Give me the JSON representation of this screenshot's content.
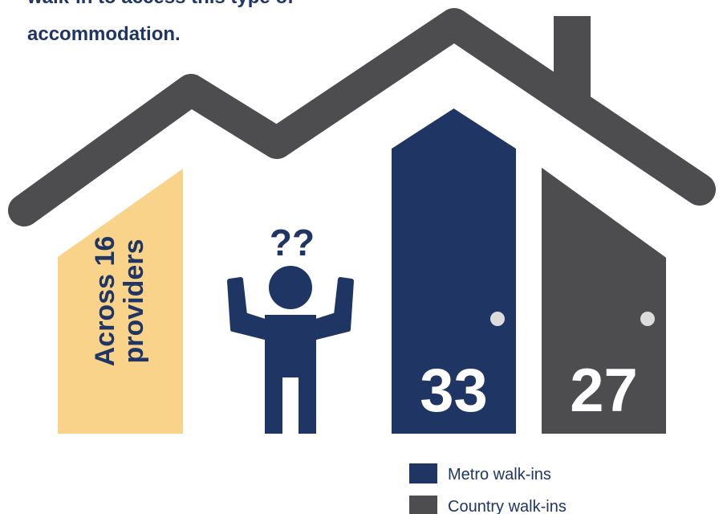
{
  "chart_data": {
    "type": "bar",
    "title": [
      "walk-in to access this type of",
      "accommodation."
    ],
    "note": [
      "Across 16",
      "providers"
    ],
    "question_marks": "??",
    "categories": [
      "Metro walk-ins",
      "Country walk-ins"
    ],
    "values": [
      33,
      27
    ],
    "colors": [
      "#1f3564",
      "#4d4d4f"
    ]
  }
}
